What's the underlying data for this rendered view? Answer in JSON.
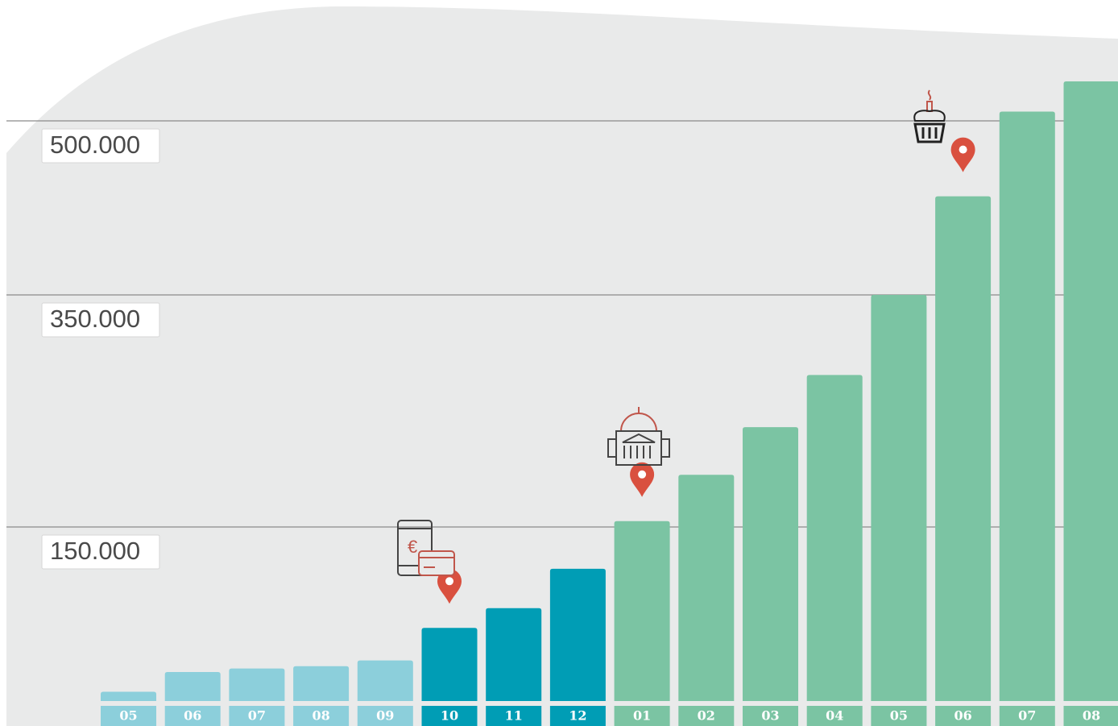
{
  "chart_data": {
    "type": "bar",
    "categories": [
      "05",
      "06",
      "07",
      "08",
      "09",
      "10",
      "11",
      "12",
      "01",
      "02",
      "03",
      "04",
      "05",
      "06",
      "07",
      "08"
    ],
    "values": [
      8000,
      25000,
      28000,
      30000,
      35000,
      63000,
      80000,
      114000,
      155000,
      195000,
      236000,
      281000,
      350000,
      435000,
      508000,
      534000
    ],
    "colors": [
      "#8ccfdb",
      "#8ccfdb",
      "#8ccfdb",
      "#8ccfdb",
      "#8ccfdb",
      "#009db5",
      "#009db5",
      "#009db5",
      "#7bc4a3",
      "#7bc4a3",
      "#7bc4a3",
      "#7bc4a3",
      "#7bc4a3",
      "#7bc4a3",
      "#7bc4a3",
      "#7bc4a3"
    ],
    "ylim": [
      0,
      600000
    ],
    "yticks": [
      {
        "value": 150000,
        "label": "150.000"
      },
      {
        "value": 350000,
        "label": "350.000"
      },
      {
        "value": 500000,
        "label": "500.000"
      }
    ],
    "grid": true
  }
}
